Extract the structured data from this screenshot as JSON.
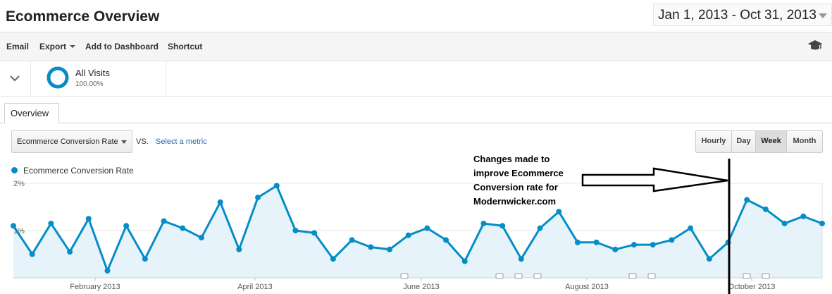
{
  "header": {
    "title": "Ecommerce Overview",
    "date_range": "Jan 1, 2013 - Oct 31, 2013"
  },
  "toolbar": {
    "email": "Email",
    "export": "Export",
    "add_to_dashboard": "Add to Dashboard",
    "shortcut": "Shortcut",
    "right_icon": "graduation-cap-icon"
  },
  "segment": {
    "name": "All Visits",
    "percent": "100.00%"
  },
  "tabs": [
    {
      "label": "Overview",
      "active": true
    }
  ],
  "controls": {
    "metric": "Ecommerce Conversion Rate",
    "vs": "VS.",
    "select_metric": "Select a metric",
    "granularity": [
      {
        "label": "Hourly",
        "active": false
      },
      {
        "label": "Day",
        "active": false
      },
      {
        "label": "Week",
        "active": true
      },
      {
        "label": "Month",
        "active": false
      }
    ]
  },
  "annotation": {
    "lines": [
      "Changes made to",
      "improve Ecommerce",
      "Conversion rate for",
      "Modernwicker.com"
    ]
  },
  "chart_data": {
    "type": "area",
    "series": [
      {
        "name": "Ecommerce Conversion Rate",
        "color": "#058dc7",
        "values": [
          1.1,
          0.5,
          1.15,
          0.55,
          1.25,
          0.15,
          1.1,
          0.4,
          1.2,
          1.05,
          0.85,
          1.6,
          0.6,
          1.7,
          1.95,
          1.0,
          0.95,
          0.4,
          0.8,
          0.65,
          0.6,
          0.9,
          1.05,
          0.8,
          0.35,
          1.15,
          1.1,
          0.4,
          1.05,
          1.4,
          0.75,
          0.75,
          0.6,
          0.7,
          0.7,
          0.8,
          1.05,
          0.4,
          0.75,
          1.65,
          1.45,
          1.15,
          1.3,
          1.15
        ]
      }
    ],
    "y_ticks": [
      "2%",
      "1%"
    ],
    "ylim": [
      0,
      2
    ],
    "x_labels": [
      "February 2013",
      "April 2013",
      "June 2013",
      "August 2013",
      "October 2013"
    ],
    "grid": true,
    "legend": "top-left"
  }
}
